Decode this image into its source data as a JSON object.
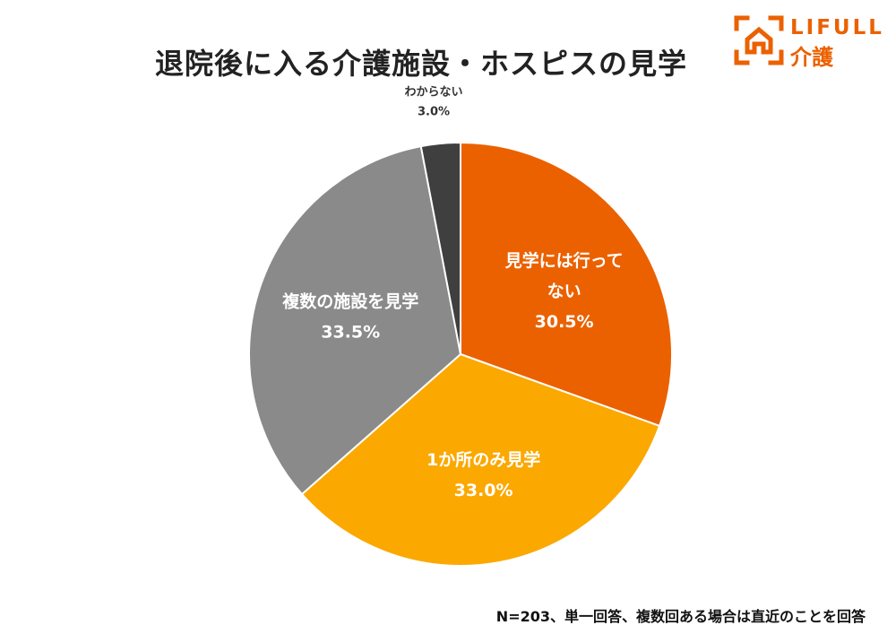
{
  "chart_data": {
    "type": "pie",
    "title": "退院後に入る介護施設・ホスピスの見学",
    "slices": [
      {
        "label_lines": [
          "見学には行って",
          "ない"
        ],
        "value": 30.5,
        "value_label": "30.5%",
        "color": "#EB6100",
        "text_color": "#FFFFFF"
      },
      {
        "label_lines": [
          "1か所のみ見学"
        ],
        "value": 33.0,
        "value_label": "33.0%",
        "color": "#FBA800",
        "text_color": "#FFFFFF"
      },
      {
        "label_lines": [
          "複数の施設を見学"
        ],
        "value": 33.5,
        "value_label": "33.5%",
        "color": "#8A8A8A",
        "text_color": "#FFFFFF"
      },
      {
        "label_lines": [
          "わからない"
        ],
        "value": 3.0,
        "value_label": "3.0%",
        "color": "#3F3F3F",
        "text_color": "#333333"
      }
    ],
    "start": "top",
    "direction": "clockwise",
    "footnote": "N=203、単一回答、複数回ある場合は直近のことを回答"
  },
  "brand": {
    "name_top": "LIFULL",
    "name_bottom": "介護",
    "color": "#EB6100"
  }
}
